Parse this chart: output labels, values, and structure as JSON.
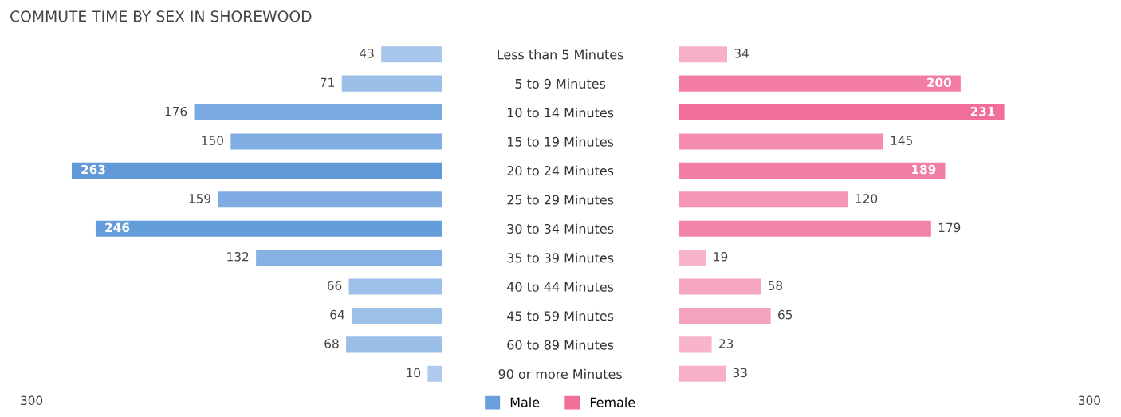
{
  "chart_data": [
    {
      "type": "bar",
      "orientation": "horizontal",
      "title": "COMMUTE TIME BY SEX IN SHOREWOOD",
      "categories": [
        "Less than 5 Minutes",
        "5 to 9 Minutes",
        "10 to 14 Minutes",
        "15 to 19 Minutes",
        "20 to 24 Minutes",
        "25 to 29 Minutes",
        "30 to 34 Minutes",
        "35 to 39 Minutes",
        "40 to 44 Minutes",
        "45 to 59 Minutes",
        "60 to 89 Minutes",
        "90 or more Minutes"
      ],
      "series": [
        {
          "name": "Male",
          "color": "#6a9fdc",
          "values": [
            43,
            71,
            176,
            150,
            263,
            159,
            246,
            132,
            66,
            64,
            68,
            10
          ],
          "colors": [
            "#a6c6ec",
            "#9bbfe9",
            "#7aaae2",
            "#81aee3",
            "#6199d9",
            "#7eace3",
            "#659cda",
            "#86b1e4",
            "#9dc0e9",
            "#9dc0e9",
            "#9cbfe9",
            "#aecbef"
          ]
        }
      ],
      "annotations": [
        "300"
      ],
      "data_labels": true,
      "legend": "bottom"
    },
    {
      "type": "bar",
      "orientation": "horizontal",
      "categories": [
        null,
        null,
        null,
        null,
        null,
        null,
        null,
        null,
        null,
        null,
        null,
        null
      ],
      "series": [
        {
          "name": "Female",
          "color": "#f07098",
          "values": [
            34,
            200,
            231,
            145,
            189,
            120,
            179,
            19,
            58,
            65,
            23,
            33
          ],
          "colors": [
            "#f7b0c6",
            "#f27ca2",
            "#f06e98",
            "#f48db0",
            "#f27ea4",
            "#f596b6",
            "#f382a7",
            "#f8b5ca",
            "#f6a6bf",
            "#f6a3bd",
            "#f8b4c9",
            "#f7b0c6"
          ]
        }
      ],
      "annotations": [
        "300"
      ],
      "data_labels": true,
      "legend": "bottom"
    }
  ]
}
